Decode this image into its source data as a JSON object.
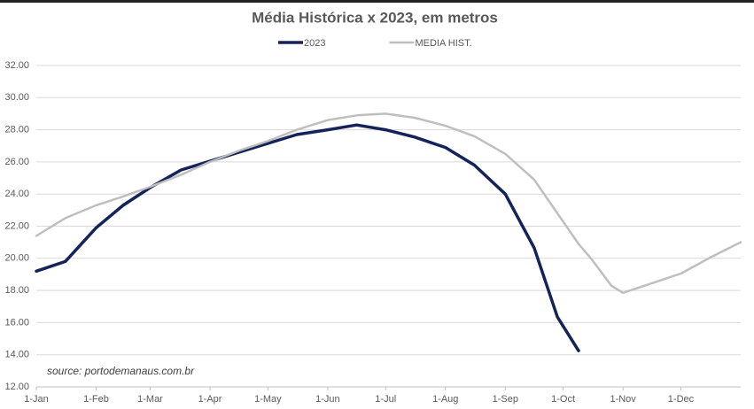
{
  "chart_data": {
    "type": "line",
    "title": "Média Histórica x 2023, em metros",
    "annotation": "source: portodemanaus.com.br",
    "x": [
      0,
      15,
      31,
      45,
      59,
      75,
      90,
      105,
      120,
      135,
      151,
      166,
      181,
      196,
      212,
      227,
      243,
      258,
      270,
      281,
      288,
      298,
      304,
      319,
      334,
      350,
      365
    ],
    "xlim": [
      0,
      365
    ],
    "xticks": [
      {
        "value": 0,
        "label": "1-Jan"
      },
      {
        "value": 31,
        "label": "1-Feb"
      },
      {
        "value": 59,
        "label": "1-Mar"
      },
      {
        "value": 90,
        "label": "1-Apr"
      },
      {
        "value": 120,
        "label": "1-May"
      },
      {
        "value": 151,
        "label": "1-Jun"
      },
      {
        "value": 181,
        "label": "1-Jul"
      },
      {
        "value": 212,
        "label": "1-Aug"
      },
      {
        "value": 243,
        "label": "1-Sep"
      },
      {
        "value": 273,
        "label": "1-Oct"
      },
      {
        "value": 304,
        "label": "1-Nov"
      },
      {
        "value": 334,
        "label": "1-Dec"
      }
    ],
    "ylim": [
      12,
      32
    ],
    "yticks": [
      {
        "value": 12,
        "label": "12.00"
      },
      {
        "value": 14,
        "label": "14.00"
      },
      {
        "value": 16,
        "label": "16.00"
      },
      {
        "value": 18,
        "label": "18.00"
      },
      {
        "value": 20,
        "label": "20.00"
      },
      {
        "value": 22,
        "label": "22.00"
      },
      {
        "value": 24,
        "label": "24.00"
      },
      {
        "value": 26,
        "label": "26.00"
      },
      {
        "value": 28,
        "label": "28.00"
      },
      {
        "value": 30,
        "label": "30.00"
      },
      {
        "value": 32,
        "label": "32.00"
      }
    ],
    "grid": true,
    "series": [
      {
        "name": "2023",
        "color": "#14245a",
        "width": 3.5,
        "values": [
          19.2,
          19.8,
          21.9,
          23.3,
          24.4,
          25.5,
          26.05,
          26.6,
          27.15,
          27.7,
          28.0,
          28.3,
          28.0,
          27.55,
          26.9,
          25.8,
          24.0,
          20.65,
          16.35,
          14.25,
          null,
          null,
          null,
          null,
          null,
          null,
          null
        ]
      },
      {
        "name": "MEDIA HIST.",
        "color": "#bfbfbf",
        "width": 2.5,
        "values": [
          21.4,
          22.5,
          23.3,
          23.85,
          24.45,
          25.2,
          26.0,
          26.7,
          27.3,
          28.0,
          28.6,
          28.9,
          29.0,
          28.75,
          28.25,
          27.6,
          26.5,
          24.9,
          22.8,
          20.9,
          19.9,
          18.3,
          17.85,
          18.45,
          19.05,
          20.1,
          21.0
        ]
      }
    ]
  }
}
